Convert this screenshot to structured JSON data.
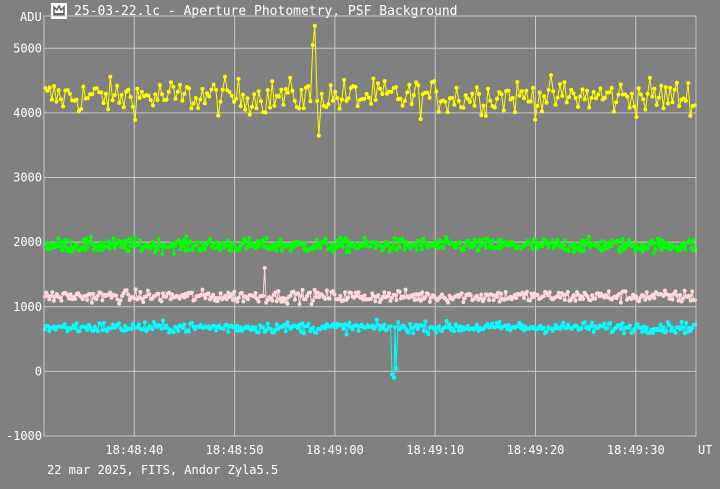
{
  "window": {
    "title": "25-03-22.lc - Aperture Photometry, PSF Background",
    "icon": "app-logo-icon"
  },
  "footer": {
    "info": "22 mar 2025, FITS, Andor Zyla5.5"
  },
  "chart_data": {
    "type": "scatter",
    "title": "",
    "ylabel": "ADU",
    "xlabel": "UT",
    "ylim": [
      -1000,
      5500
    ],
    "y_ticks": [
      -1000,
      0,
      1000,
      2000,
      3000,
      4000,
      5000
    ],
    "y_tick_labels": [
      "-1000",
      "0",
      "1000",
      "2000",
      "3000",
      "4000",
      "5000"
    ],
    "x_range": [
      "18:48:31",
      "18:49:36"
    ],
    "x_ticks": [
      "18:48:40",
      "18:48:50",
      "18:49:00",
      "18:49:10",
      "18:49:20",
      "18:49:30"
    ],
    "grid": true,
    "legend": "none",
    "series": [
      {
        "color": "#ffff00",
        "style": "points-with-lines",
        "mean": 4250,
        "scatter": 230,
        "points": 290,
        "outliers": [
          [
            "18:48:58.0",
            5350
          ],
          [
            "18:48:57.8",
            5050
          ],
          [
            "18:48:58.4",
            3650
          ]
        ]
      },
      {
        "color": "#00ff00",
        "style": "points-with-lines",
        "mean": 1950,
        "scatter": 90,
        "points": 520,
        "outliers": []
      },
      {
        "color": "#ffd9d9",
        "style": "points-with-lines",
        "mean": 1160,
        "scatter": 80,
        "points": 430,
        "outliers": [
          [
            "18:48:53.0",
            1600
          ]
        ]
      },
      {
        "color": "#00ffff",
        "style": "points-with-lines",
        "mean": 680,
        "scatter": 70,
        "points": 430,
        "outliers": [
          [
            "18:49:05.7",
            -50
          ],
          [
            "18:49:05.9",
            -100
          ],
          [
            "18:49:06.1",
            50
          ]
        ]
      }
    ]
  }
}
